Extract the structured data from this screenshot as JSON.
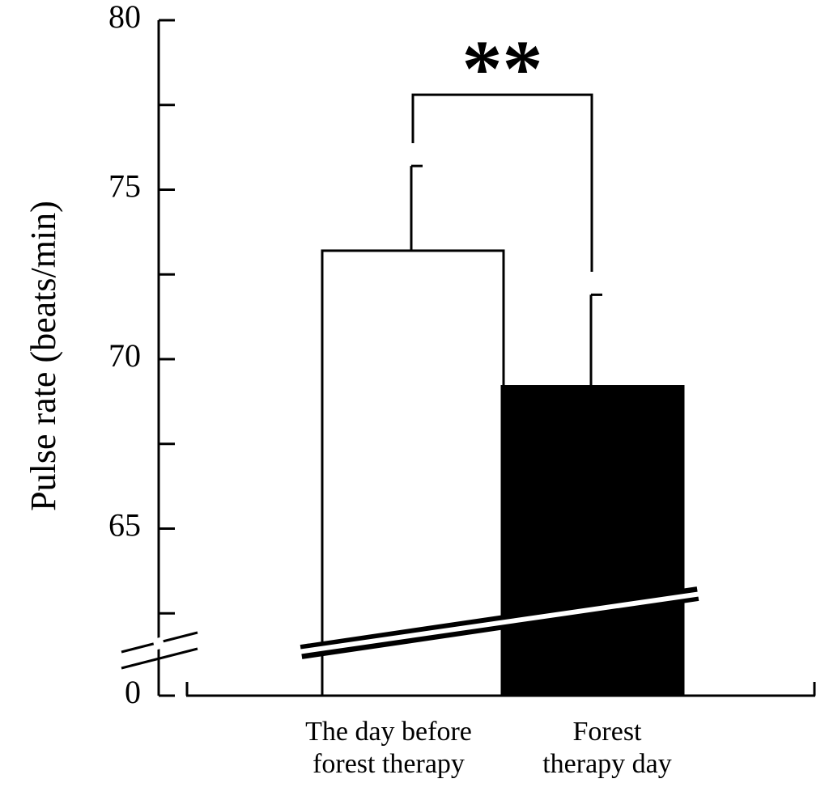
{
  "chart_data": {
    "type": "bar",
    "categories": [
      [
        "The day before",
        "forest therapy"
      ],
      [
        "Forest",
        "therapy day"
      ]
    ],
    "values": [
      73.2,
      69.2
    ],
    "errors": [
      2.5,
      2.7
    ],
    "bar_colors": [
      "#ffffff",
      "#000000"
    ],
    "title": "",
    "xlabel": "",
    "ylabel": "Pulse rate (beats/min)",
    "ylim": [
      60,
      80
    ],
    "yticks_major": [
      65,
      70,
      75,
      80
    ],
    "yticks_minor": [
      62.5,
      67.5,
      72.5,
      77.5
    ],
    "y_baseline_label": "0",
    "axis_break": true,
    "significance": {
      "label": "**",
      "between": [
        0,
        1
      ],
      "bracket_y": 77.8
    },
    "grid": false,
    "legend": "none"
  }
}
